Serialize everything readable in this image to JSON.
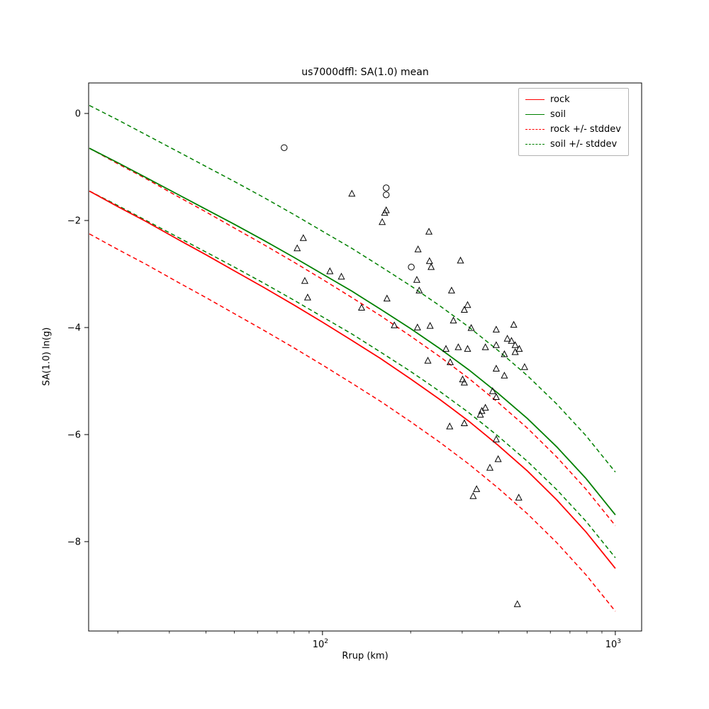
{
  "chart_data": {
    "type": "line",
    "title": "us7000dffl: SA(1.0) mean",
    "xlabel": "Rrup (km)",
    "ylabel": "SA(1.0) ln(g)",
    "x_scale": "log",
    "grid": false,
    "legend_position": "upper right",
    "xlim": [
      15.9,
      1230
    ],
    "ylim": [
      -9.67,
      0.57
    ],
    "yticks": [
      0,
      -2,
      -4,
      -6,
      -8
    ],
    "xticks": [
      {
        "value": 100,
        "label_base": "10",
        "label_exp": "2"
      },
      {
        "value": 1000,
        "label_base": "10",
        "label_exp": "3"
      }
    ],
    "stddev": 0.8,
    "colors": {
      "rock": "#ff0000",
      "soil": "#008000",
      "marker": "#000000"
    },
    "legend": [
      {
        "name": "rock",
        "color_key": "rock",
        "dash": false
      },
      {
        "name": "soil",
        "color_key": "soil",
        "dash": false
      },
      {
        "name": "rock +/- stddev",
        "color_key": "rock",
        "dash": true
      },
      {
        "name": "soil +/- stddev",
        "color_key": "soil",
        "dash": true
      }
    ],
    "series": [
      {
        "name": "rock",
        "x": [
          16,
          20,
          25,
          32,
          40,
          50,
          63,
          80,
          100,
          126,
          158,
          200,
          251,
          316,
          398,
          501,
          631,
          794,
          1000
        ],
        "y": [
          -1.45,
          -1.74,
          -2.02,
          -2.35,
          -2.64,
          -2.94,
          -3.25,
          -3.58,
          -3.9,
          -4.24,
          -4.58,
          -4.96,
          -5.34,
          -5.75,
          -6.2,
          -6.68,
          -7.22,
          -7.82,
          -8.5
        ]
      },
      {
        "name": "soil",
        "x": [
          16,
          20,
          25,
          32,
          40,
          50,
          63,
          80,
          100,
          126,
          158,
          200,
          251,
          316,
          398,
          501,
          631,
          794,
          1000
        ],
        "y": [
          -0.65,
          -0.92,
          -1.2,
          -1.51,
          -1.79,
          -2.07,
          -2.37,
          -2.69,
          -3.0,
          -3.32,
          -3.66,
          -4.02,
          -4.39,
          -4.79,
          -5.23,
          -5.7,
          -6.23,
          -6.82,
          -7.5
        ]
      }
    ],
    "scatter": {
      "triangles": [
        [
          126,
          -1.5
        ],
        [
          165,
          -1.81
        ],
        [
          163,
          -1.86
        ],
        [
          160,
          -2.03
        ],
        [
          231,
          -2.21
        ],
        [
          86,
          -2.33
        ],
        [
          82,
          -2.52
        ],
        [
          212,
          -2.54
        ],
        [
          296,
          -2.75
        ],
        [
          232,
          -2.76
        ],
        [
          235,
          -2.87
        ],
        [
          106,
          -2.95
        ],
        [
          116,
          -3.05
        ],
        [
          87,
          -3.13
        ],
        [
          210,
          -3.11
        ],
        [
          214,
          -3.31
        ],
        [
          276,
          -3.31
        ],
        [
          89,
          -3.44
        ],
        [
          166,
          -3.46
        ],
        [
          313,
          -3.58
        ],
        [
          136,
          -3.63
        ],
        [
          305,
          -3.67
        ],
        [
          280,
          -3.87
        ],
        [
          450,
          -3.95
        ],
        [
          176,
          -3.96
        ],
        [
          233,
          -3.97
        ],
        [
          211,
          -4.0
        ],
        [
          322,
          -4.01
        ],
        [
          392,
          -4.04
        ],
        [
          428,
          -4.21
        ],
        [
          442,
          -4.25
        ],
        [
          392,
          -4.33
        ],
        [
          455,
          -4.33
        ],
        [
          360,
          -4.37
        ],
        [
          291,
          -4.37
        ],
        [
          313,
          -4.4
        ],
        [
          264,
          -4.4
        ],
        [
          470,
          -4.4
        ],
        [
          455,
          -4.46
        ],
        [
          418,
          -4.5
        ],
        [
          229,
          -4.62
        ],
        [
          273,
          -4.65
        ],
        [
          490,
          -4.74
        ],
        [
          392,
          -4.77
        ],
        [
          418,
          -4.9
        ],
        [
          301,
          -4.97
        ],
        [
          305,
          -5.03
        ],
        [
          381,
          -5.19
        ],
        [
          392,
          -5.3
        ],
        [
          360,
          -5.5
        ],
        [
          350,
          -5.56
        ],
        [
          346,
          -5.63
        ],
        [
          305,
          -5.79
        ],
        [
          272,
          -5.85
        ],
        [
          392,
          -6.09
        ],
        [
          398,
          -6.46
        ],
        [
          373,
          -6.62
        ],
        [
          336,
          -7.02
        ],
        [
          327,
          -7.15
        ],
        [
          468,
          -7.18
        ],
        [
          463,
          -9.17
        ]
      ],
      "circles": [
        [
          74,
          -0.64
        ],
        [
          165,
          -1.39
        ],
        [
          165,
          -1.52
        ],
        [
          201,
          -2.87
        ]
      ]
    }
  }
}
